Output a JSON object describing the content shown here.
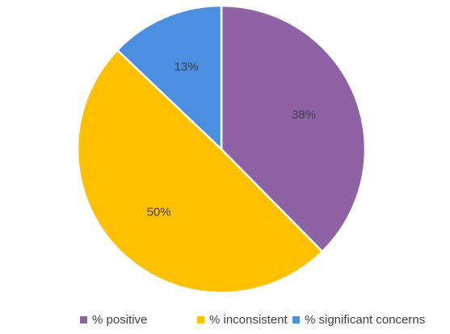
{
  "chart_data": {
    "type": "pie",
    "title": "",
    "start_angle_deg": 0,
    "direction": "clockwise",
    "slices": [
      {
        "label": "% positive",
        "value": 38,
        "data_label": "38%",
        "color": "#8e62a5"
      },
      {
        "label": "% inconsistent",
        "value": 50,
        "data_label": "50%",
        "color": "#ffc000"
      },
      {
        "label": "% significant concerns",
        "value": 13,
        "data_label": "13%",
        "color": "#4a8fe0"
      }
    ],
    "slice_border_color": "#ffffff",
    "legend_position": "bottom"
  }
}
